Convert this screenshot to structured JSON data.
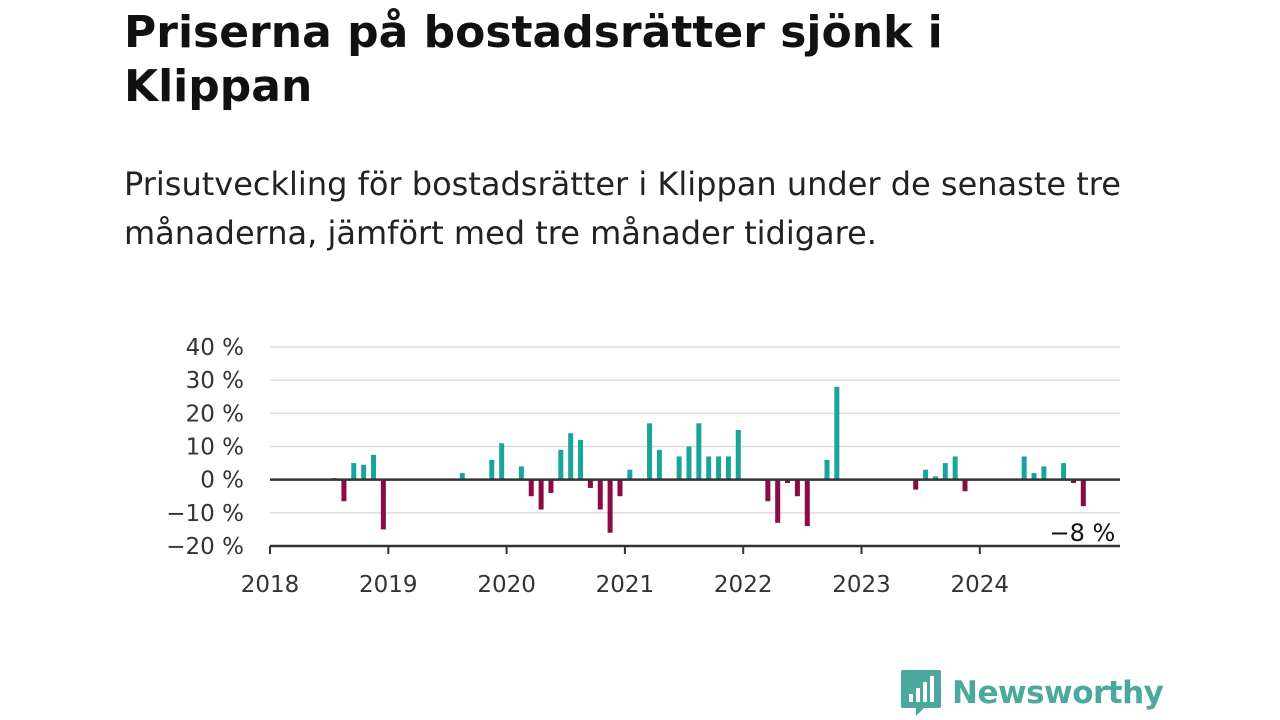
{
  "title": "Priserna på bostadsrätter sjönk i Klippan",
  "subtitle": "Prisutveckling för bostadsrätter i Klippan under de senaste tre månaderna, jämfört med tre månader tidigare.",
  "brand": {
    "name": "Newsworthy",
    "color": "#4aa89c",
    "icon": "bar-chart-speech-bubble-icon"
  },
  "colors": {
    "positive": "#1aa59a",
    "negative": "#8c0a45",
    "grid": "#dddddd",
    "axis": "#333333"
  },
  "chart_data": {
    "type": "bar",
    "title": "Priserna på bostadsrätter sjönk i Klippan",
    "xlabel": "",
    "ylabel": "",
    "ylim": [
      -20,
      40
    ],
    "xlim": [
      "2018-01",
      "2024-12"
    ],
    "yticks": [
      40,
      30,
      20,
      10,
      0,
      -10,
      -20
    ],
    "ytick_labels": [
      "40 %",
      "30 %",
      "20 %",
      "10 %",
      "0 %",
      "−10 %",
      "−20 %"
    ],
    "xtick_labels": [
      "2018",
      "2019",
      "2020",
      "2021",
      "2022",
      "2023",
      "2024"
    ],
    "grid": true,
    "end_label": "−8 %",
    "unit": "%",
    "x": [
      "2018-07",
      "2018-08",
      "2018-09",
      "2018-10",
      "2018-11",
      "2018-12",
      "2019-08",
      "2019-11",
      "2019-12",
      "2020-02",
      "2020-03",
      "2020-04",
      "2020-05",
      "2020-06",
      "2020-07",
      "2020-08",
      "2020-09",
      "2020-10",
      "2020-11",
      "2020-12",
      "2021-01",
      "2021-03",
      "2021-04",
      "2021-06",
      "2021-07",
      "2021-08",
      "2021-09",
      "2021-10",
      "2021-11",
      "2021-12",
      "2022-03",
      "2022-04",
      "2022-05",
      "2022-06",
      "2022-07",
      "2022-09",
      "2022-10",
      "2023-06",
      "2023-07",
      "2023-08",
      "2023-09",
      "2023-10",
      "2023-11",
      "2024-05",
      "2024-06",
      "2024-07",
      "2024-09",
      "2024-10",
      "2024-11"
    ],
    "values": [
      0.5,
      -6.5,
      5,
      4.5,
      7.5,
      -15,
      2,
      6,
      11,
      4,
      -5,
      -9,
      -4,
      9,
      14,
      12,
      -2.5,
      -9,
      -16,
      -5,
      3,
      17,
      9,
      7,
      10,
      17,
      7,
      7,
      7,
      15,
      -6.5,
      -13,
      -1,
      -5,
      -14,
      6,
      28,
      -3,
      3,
      1,
      5,
      7,
      -3.5,
      7,
      2,
      4,
      5,
      -1,
      -8
    ]
  }
}
